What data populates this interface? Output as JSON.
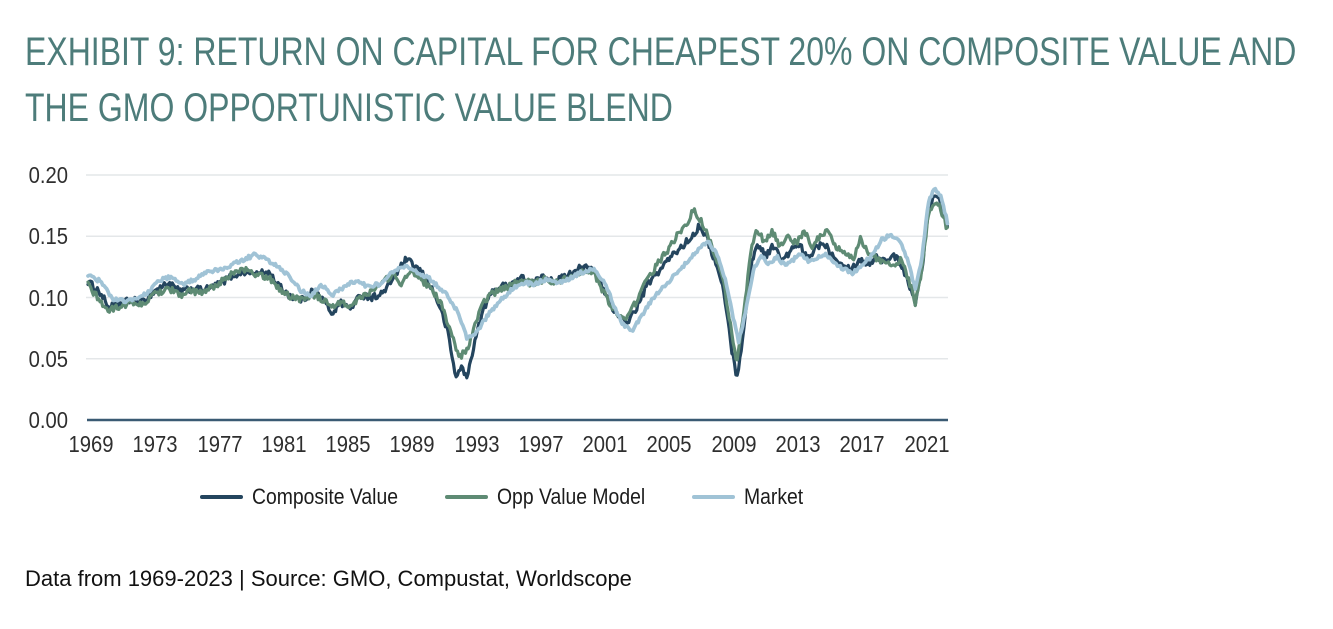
{
  "accent_color": "#4d7c7a",
  "header": {
    "title_line1": "EXHIBIT 9: RETURN ON CAPITAL FOR CHEAPEST 20% ON COMPOSITE VALUE AND",
    "title_line2": "THE GMO OPPORTUNISTIC VALUE BLEND"
  },
  "footer": {
    "text": "Data from 1969-2023 | Source: GMO, Compustat, Worldscope"
  },
  "chart_data": {
    "type": "line",
    "title": "EXHIBIT 9: RETURN ON CAPITAL FOR CHEAPEST 20% ON COMPOSITE VALUE AND THE GMO OPPORTUNISTIC VALUE BLEND",
    "xlabel": "",
    "ylabel": "",
    "xlim": [
      1968.8,
      2022.4
    ],
    "ylim": [
      0,
      0.2
    ],
    "grid": "horizontal",
    "legend_position": "bottom",
    "x_tick_labels": [
      "1969",
      "1973",
      "1977",
      "1981",
      "1985",
      "1989",
      "1993",
      "1997",
      "2001",
      "2005",
      "2009",
      "2013",
      "2017",
      "2021"
    ],
    "x_tick_years": [
      1969,
      1973,
      1977,
      1981,
      1985,
      1989,
      1993,
      1997,
      2001,
      2005,
      2009,
      2013,
      2017,
      2021
    ],
    "y_tick_labels": [
      "0.00",
      "0.05",
      "0.10",
      "0.15",
      "0.20"
    ],
    "y_tick_values": [
      0,
      0.05,
      0.1,
      0.15,
      0.2
    ],
    "series": [
      {
        "name": "Composite Value",
        "color": "#24455e",
        "points": [
          [
            1968.8,
            0.113
          ],
          [
            1969.5,
            0.105
          ],
          [
            1970.1,
            0.092
          ],
          [
            1970.8,
            0.095
          ],
          [
            1971.5,
            0.098
          ],
          [
            1972.2,
            0.096
          ],
          [
            1973.0,
            0.106
          ],
          [
            1973.8,
            0.112
          ],
          [
            1974.5,
            0.105
          ],
          [
            1975.2,
            0.107
          ],
          [
            1976.0,
            0.106
          ],
          [
            1977.0,
            0.111
          ],
          [
            1977.8,
            0.118
          ],
          [
            1978.5,
            0.121
          ],
          [
            1979.3,
            0.119
          ],
          [
            1980.0,
            0.121
          ],
          [
            1980.8,
            0.108
          ],
          [
            1981.5,
            0.1
          ],
          [
            1982.2,
            0.098
          ],
          [
            1982.8,
            0.106
          ],
          [
            1983.4,
            0.099
          ],
          [
            1984.0,
            0.087
          ],
          [
            1984.5,
            0.096
          ],
          [
            1985.1,
            0.091
          ],
          [
            1985.8,
            0.102
          ],
          [
            1986.5,
            0.1
          ],
          [
            1987.2,
            0.104
          ],
          [
            1987.8,
            0.116
          ],
          [
            1988.6,
            0.131
          ],
          [
            1989.3,
            0.124
          ],
          [
            1990.0,
            0.113
          ],
          [
            1990.6,
            0.096
          ],
          [
            1991.2,
            0.072
          ],
          [
            1991.7,
            0.034
          ],
          [
            1992.0,
            0.044
          ],
          [
            1992.4,
            0.034
          ],
          [
            1992.8,
            0.06
          ],
          [
            1993.4,
            0.09
          ],
          [
            1994.0,
            0.106
          ],
          [
            1995.0,
            0.111
          ],
          [
            1995.8,
            0.116
          ],
          [
            1996.5,
            0.112
          ],
          [
            1997.2,
            0.117
          ],
          [
            1998.0,
            0.114
          ],
          [
            1998.8,
            0.119
          ],
          [
            1999.5,
            0.126
          ],
          [
            2000.3,
            0.121
          ],
          [
            2001.0,
            0.104
          ],
          [
            2001.7,
            0.086
          ],
          [
            2002.3,
            0.079
          ],
          [
            2002.9,
            0.09
          ],
          [
            2003.6,
            0.11
          ],
          [
            2004.3,
            0.121
          ],
          [
            2005.0,
            0.132
          ],
          [
            2005.8,
            0.142
          ],
          [
            2006.4,
            0.15
          ],
          [
            2006.9,
            0.159
          ],
          [
            2007.3,
            0.149
          ],
          [
            2007.9,
            0.127
          ],
          [
            2008.4,
            0.104
          ],
          [
            2008.9,
            0.055
          ],
          [
            2009.2,
            0.035
          ],
          [
            2009.6,
            0.07
          ],
          [
            2010.1,
            0.128
          ],
          [
            2010.5,
            0.144
          ],
          [
            2011.0,
            0.134
          ],
          [
            2011.5,
            0.143
          ],
          [
            2012.0,
            0.129
          ],
          [
            2012.6,
            0.139
          ],
          [
            2013.1,
            0.143
          ],
          [
            2013.6,
            0.131
          ],
          [
            2014.1,
            0.141
          ],
          [
            2014.6,
            0.145
          ],
          [
            2015.2,
            0.134
          ],
          [
            2015.8,
            0.128
          ],
          [
            2016.3,
            0.123
          ],
          [
            2016.9,
            0.131
          ],
          [
            2017.4,
            0.127
          ],
          [
            2017.9,
            0.134
          ],
          [
            2018.4,
            0.129
          ],
          [
            2018.9,
            0.135
          ],
          [
            2019.4,
            0.128
          ],
          [
            2019.9,
            0.112
          ],
          [
            2020.3,
            0.096
          ],
          [
            2020.7,
            0.12
          ],
          [
            2021.1,
            0.17
          ],
          [
            2021.5,
            0.186
          ],
          [
            2021.9,
            0.178
          ],
          [
            2022.3,
            0.157
          ]
        ]
      },
      {
        "name": "Opp Value Model",
        "color": "#5e8b74",
        "points": [
          [
            1968.8,
            0.11
          ],
          [
            1969.5,
            0.098
          ],
          [
            1970.1,
            0.089
          ],
          [
            1970.8,
            0.093
          ],
          [
            1971.5,
            0.096
          ],
          [
            1972.2,
            0.094
          ],
          [
            1973.0,
            0.103
          ],
          [
            1973.8,
            0.108
          ],
          [
            1974.5,
            0.102
          ],
          [
            1975.2,
            0.105
          ],
          [
            1976.0,
            0.104
          ],
          [
            1977.0,
            0.112
          ],
          [
            1977.8,
            0.12
          ],
          [
            1978.5,
            0.123
          ],
          [
            1979.3,
            0.118
          ],
          [
            1980.0,
            0.117
          ],
          [
            1980.8,
            0.106
          ],
          [
            1981.5,
            0.1
          ],
          [
            1982.2,
            0.099
          ],
          [
            1982.8,
            0.103
          ],
          [
            1983.4,
            0.098
          ],
          [
            1984.0,
            0.091
          ],
          [
            1984.6,
            0.097
          ],
          [
            1985.2,
            0.093
          ],
          [
            1985.8,
            0.101
          ],
          [
            1986.5,
            0.106
          ],
          [
            1987.1,
            0.111
          ],
          [
            1987.7,
            0.119
          ],
          [
            1988.3,
            0.112
          ],
          [
            1989.0,
            0.121
          ],
          [
            1989.6,
            0.114
          ],
          [
            1990.2,
            0.107
          ],
          [
            1990.8,
            0.094
          ],
          [
            1991.4,
            0.07
          ],
          [
            1991.9,
            0.052
          ],
          [
            1992.4,
            0.056
          ],
          [
            1992.9,
            0.078
          ],
          [
            1993.5,
            0.098
          ],
          [
            1994.1,
            0.104
          ],
          [
            1995.0,
            0.109
          ],
          [
            1995.8,
            0.114
          ],
          [
            1996.5,
            0.111
          ],
          [
            1997.2,
            0.115
          ],
          [
            1998.0,
            0.112
          ],
          [
            1998.8,
            0.117
          ],
          [
            1999.5,
            0.122
          ],
          [
            2000.3,
            0.119
          ],
          [
            2001.0,
            0.102
          ],
          [
            2001.7,
            0.087
          ],
          [
            2002.3,
            0.083
          ],
          [
            2002.9,
            0.096
          ],
          [
            2003.6,
            0.115
          ],
          [
            2004.3,
            0.128
          ],
          [
            2005.0,
            0.141
          ],
          [
            2005.6,
            0.153
          ],
          [
            2006.1,
            0.159
          ],
          [
            2006.5,
            0.172
          ],
          [
            2006.9,
            0.164
          ],
          [
            2007.3,
            0.154
          ],
          [
            2007.9,
            0.131
          ],
          [
            2008.4,
            0.112
          ],
          [
            2008.9,
            0.068
          ],
          [
            2009.2,
            0.047
          ],
          [
            2009.6,
            0.085
          ],
          [
            2010.1,
            0.142
          ],
          [
            2010.4,
            0.156
          ],
          [
            2010.9,
            0.146
          ],
          [
            2011.4,
            0.154
          ],
          [
            2011.9,
            0.141
          ],
          [
            2012.4,
            0.15
          ],
          [
            2012.9,
            0.144
          ],
          [
            2013.4,
            0.153
          ],
          [
            2013.9,
            0.142
          ],
          [
            2014.4,
            0.15
          ],
          [
            2014.9,
            0.154
          ],
          [
            2015.4,
            0.141
          ],
          [
            2015.9,
            0.136
          ],
          [
            2016.4,
            0.131
          ],
          [
            2016.9,
            0.148
          ],
          [
            2017.3,
            0.138
          ],
          [
            2017.9,
            0.132
          ],
          [
            2018.4,
            0.128
          ],
          [
            2018.9,
            0.126
          ],
          [
            2019.4,
            0.131
          ],
          [
            2019.9,
            0.115
          ],
          [
            2020.3,
            0.094
          ],
          [
            2020.7,
            0.122
          ],
          [
            2021.1,
            0.165
          ],
          [
            2021.5,
            0.179
          ],
          [
            2021.9,
            0.172
          ],
          [
            2022.3,
            0.155
          ]
        ]
      },
      {
        "name": "Market",
        "color": "#a0c3d6",
        "points": [
          [
            1968.8,
            0.118
          ],
          [
            1969.6,
            0.113
          ],
          [
            1970.3,
            0.099
          ],
          [
            1971.0,
            0.097
          ],
          [
            1971.8,
            0.099
          ],
          [
            1972.5,
            0.104
          ],
          [
            1973.2,
            0.114
          ],
          [
            1974.0,
            0.117
          ],
          [
            1974.8,
            0.111
          ],
          [
            1975.5,
            0.115
          ],
          [
            1976.2,
            0.12
          ],
          [
            1977.0,
            0.123
          ],
          [
            1977.8,
            0.127
          ],
          [
            1978.5,
            0.131
          ],
          [
            1979.2,
            0.135
          ],
          [
            1979.8,
            0.132
          ],
          [
            1980.5,
            0.126
          ],
          [
            1981.2,
            0.119
          ],
          [
            1982.0,
            0.106
          ],
          [
            1982.7,
            0.101
          ],
          [
            1983.3,
            0.111
          ],
          [
            1984.0,
            0.102
          ],
          [
            1984.8,
            0.109
          ],
          [
            1985.5,
            0.114
          ],
          [
            1986.2,
            0.109
          ],
          [
            1987.0,
            0.111
          ],
          [
            1987.8,
            0.121
          ],
          [
            1988.5,
            0.126
          ],
          [
            1989.1,
            0.121
          ],
          [
            1989.9,
            0.117
          ],
          [
            1990.6,
            0.109
          ],
          [
            1991.2,
            0.101
          ],
          [
            1991.9,
            0.086
          ],
          [
            1992.4,
            0.067
          ],
          [
            1992.9,
            0.07
          ],
          [
            1993.6,
            0.084
          ],
          [
            1994.3,
            0.095
          ],
          [
            1995.1,
            0.106
          ],
          [
            1995.9,
            0.112
          ],
          [
            1996.6,
            0.111
          ],
          [
            1997.3,
            0.115
          ],
          [
            1998.1,
            0.112
          ],
          [
            1998.9,
            0.116
          ],
          [
            1999.6,
            0.121
          ],
          [
            2000.3,
            0.124
          ],
          [
            2001.0,
            0.111
          ],
          [
            2001.7,
            0.088
          ],
          [
            2002.2,
            0.076
          ],
          [
            2002.7,
            0.073
          ],
          [
            2003.3,
            0.086
          ],
          [
            2004.0,
            0.1
          ],
          [
            2004.8,
            0.111
          ],
          [
            2005.5,
            0.121
          ],
          [
            2006.2,
            0.13
          ],
          [
            2006.9,
            0.141
          ],
          [
            2007.4,
            0.146
          ],
          [
            2008.0,
            0.134
          ],
          [
            2008.5,
            0.114
          ],
          [
            2009.0,
            0.082
          ],
          [
            2009.3,
            0.064
          ],
          [
            2009.7,
            0.085
          ],
          [
            2010.2,
            0.122
          ],
          [
            2010.7,
            0.134
          ],
          [
            2011.2,
            0.127
          ],
          [
            2011.7,
            0.133
          ],
          [
            2012.2,
            0.126
          ],
          [
            2012.7,
            0.131
          ],
          [
            2013.2,
            0.135
          ],
          [
            2013.7,
            0.129
          ],
          [
            2014.2,
            0.133
          ],
          [
            2014.7,
            0.135
          ],
          [
            2015.3,
            0.127
          ],
          [
            2015.9,
            0.123
          ],
          [
            2016.4,
            0.12
          ],
          [
            2017.0,
            0.127
          ],
          [
            2017.6,
            0.134
          ],
          [
            2018.2,
            0.147
          ],
          [
            2018.7,
            0.151
          ],
          [
            2019.3,
            0.147
          ],
          [
            2019.9,
            0.128
          ],
          [
            2020.3,
            0.106
          ],
          [
            2020.7,
            0.13
          ],
          [
            2021.1,
            0.178
          ],
          [
            2021.5,
            0.19
          ],
          [
            2021.9,
            0.182
          ],
          [
            2022.3,
            0.162
          ]
        ]
      }
    ]
  }
}
